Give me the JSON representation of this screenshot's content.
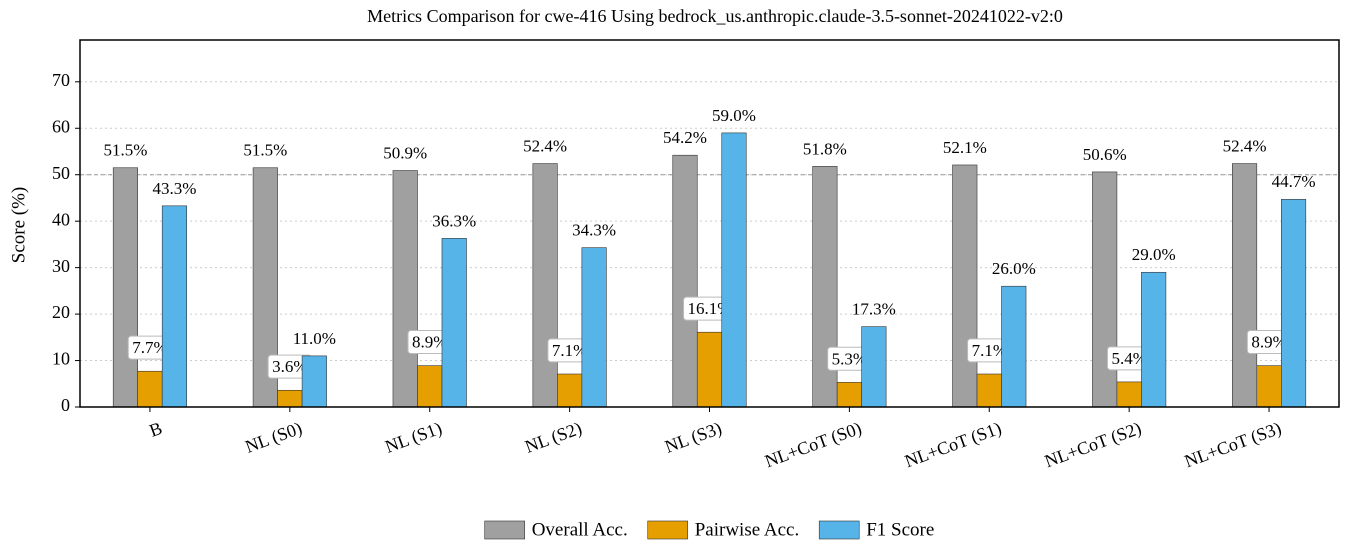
{
  "chart_data": {
    "type": "bar",
    "title": "Metrics Comparison for cwe-416 Using bedrock_us.anthropic.claude-3.5-sonnet-20241022-v2:0",
    "y_label": "Score (%)",
    "categories": [
      "B",
      "NL (S0)",
      "NL (S1)",
      "NL (S2)",
      "NL (S3)",
      "NL+CoT (S0)",
      "NL+CoT (S1)",
      "NL+CoT (S2)",
      "NL+CoT (S3)"
    ],
    "series": [
      {
        "name": "Overall Acc.",
        "color": "#a0a0a0",
        "values": [
          51.5,
          51.5,
          50.9,
          52.4,
          54.2,
          51.8,
          52.1,
          50.6,
          52.4
        ],
        "value_labels": [
          "51.5%",
          "51.5%",
          "50.9%",
          "52.4%",
          "54.2%",
          "51.8%",
          "52.1%",
          "50.6%",
          "52.4%"
        ]
      },
      {
        "name": "Pairwise Acc.",
        "color": "#e69f00",
        "values": [
          7.7,
          3.6,
          8.9,
          7.1,
          16.1,
          5.3,
          7.1,
          5.4,
          8.9
        ],
        "value_labels": [
          "7.7%",
          "3.6%",
          "8.9%",
          "7.1%",
          "16.1%",
          "5.3%",
          "7.1%",
          "5.4%",
          "8.9%"
        ]
      },
      {
        "name": "F1 Score",
        "color": "#56b4e9",
        "values": [
          43.3,
          11.0,
          36.3,
          34.3,
          59.0,
          17.3,
          26.0,
          29.0,
          44.7
        ],
        "value_labels": [
          "43.3%",
          "11.0%",
          "36.3%",
          "34.3%",
          "59.0%",
          "17.3%",
          "26.0%",
          "29.0%",
          "44.7%"
        ]
      }
    ],
    "ylim": [
      0,
      79
    ],
    "yticks": [
      0,
      10,
      20,
      30,
      40,
      50,
      60,
      70
    ],
    "grid": true,
    "reference_line": 50,
    "legend": "bottom"
  }
}
